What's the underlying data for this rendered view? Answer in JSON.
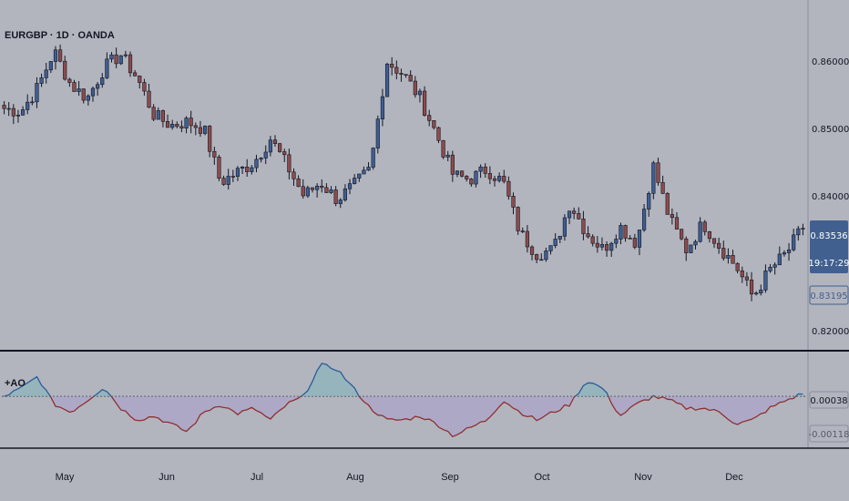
{
  "header": {
    "symbol_title": "EURGBP · 1D · OANDA"
  },
  "indicator": {
    "label": "+AO"
  },
  "price_tags": {
    "last_price": "0.83536",
    "countdown": "19:17:29",
    "reference_price": "0.83195"
  },
  "ao_tags": {
    "current": "0.00038",
    "reference": "-0.00118"
  },
  "colors": {
    "background": "#b2b5be",
    "bull": "#3f5e94",
    "bear": "#8e4b4b",
    "ao_line": "#8e3030",
    "ao_peak_line": "#2a5d9a",
    "ao_fill_up": "#7fb3b8",
    "ao_fill_down": "#a99ad2",
    "tag_last": "#41608f"
  },
  "chart_data": [
    {
      "type": "candlestick",
      "title": "EURGBP · 1D · OANDA",
      "ylim": [
        0.818,
        0.868
      ],
      "y_ticks": [
        "0.86000",
        "0.85000",
        "0.84000",
        "0.82000"
      ],
      "y_tick_values": [
        0.86,
        0.85,
        0.84,
        0.82
      ],
      "x_ticks": [
        "May",
        "Jun",
        "Jul",
        "Aug",
        "Sep",
        "Oct",
        "Nov",
        "Dec"
      ],
      "close_keypoints": [
        0.853,
        0.8525,
        0.856,
        0.8615,
        0.8565,
        0.8545,
        0.859,
        0.861,
        0.8575,
        0.852,
        0.8505,
        0.851,
        0.85,
        0.842,
        0.8435,
        0.845,
        0.8485,
        0.8445,
        0.84,
        0.842,
        0.8395,
        0.8415,
        0.844,
        0.86,
        0.858,
        0.8545,
        0.849,
        0.843,
        0.8425,
        0.844,
        0.842,
        0.8345,
        0.8315,
        0.832,
        0.839,
        0.8345,
        0.832,
        0.8355,
        0.833,
        0.8445,
        0.8365,
        0.832,
        0.836,
        0.8325,
        0.8295,
        0.825,
        0.829,
        0.8315,
        0.8354
      ]
    },
    {
      "type": "area",
      "title": "+AO",
      "ylim": [
        -0.006,
        0.005
      ],
      "y_ticks": [
        "0.00038",
        "-0.00118"
      ],
      "y_tick_values": [
        0.00038,
        -0.00118
      ],
      "ao_keypoints": [
        0.0,
        0.001,
        0.0025,
        -0.001,
        -0.002,
        -0.0005,
        0.0012,
        -0.0015,
        -0.003,
        -0.0025,
        -0.0035,
        -0.0045,
        -0.002,
        -0.001,
        -0.0022,
        -0.0015,
        -0.003,
        -0.001,
        0.0,
        0.004,
        0.0035,
        0.001,
        -0.0015,
        -0.003,
        -0.003,
        -0.0025,
        -0.0035,
        -0.005,
        -0.004,
        -0.003,
        -0.0005,
        -0.002,
        -0.003,
        -0.002,
        -0.001,
        0.002,
        0.001,
        -0.0025,
        -0.001,
        0.0,
        -0.0005,
        -0.0015,
        -0.0015,
        -0.002,
        -0.0035,
        -0.003,
        -0.0015,
        -0.0005,
        0.0004
      ]
    }
  ]
}
